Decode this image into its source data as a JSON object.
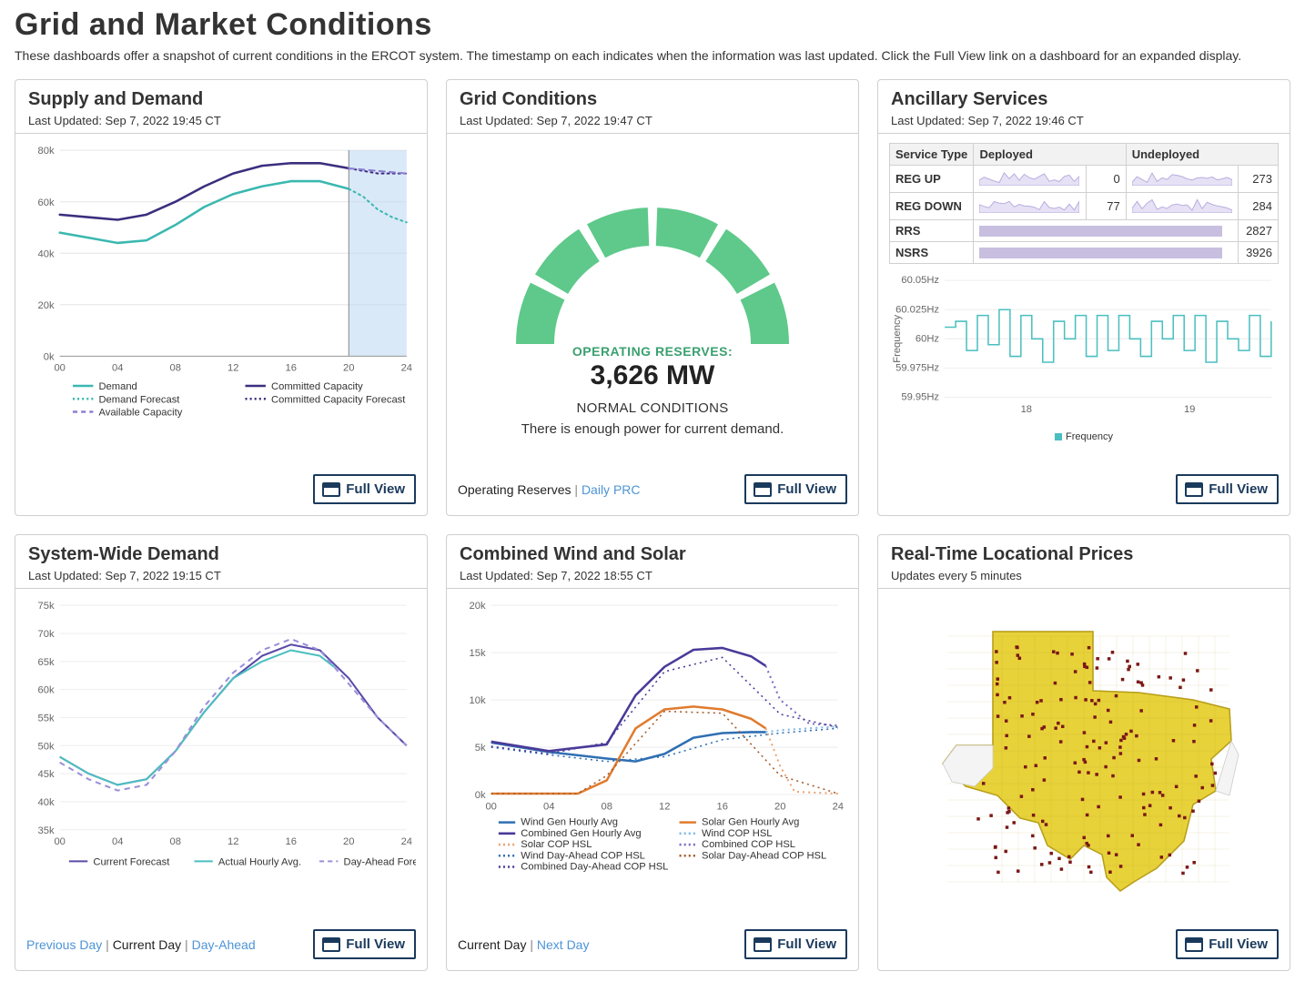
{
  "page": {
    "title": "Grid and Market Conditions",
    "subtitle": "These dashboards offer a snapshot of current conditions in the ERCOT system. The timestamp on each indicates when the information was last updated. Click the Full View link on a dashboard for an expanded display."
  },
  "colors": {
    "card_border": "#cfcfcf",
    "accent_nav": "#1a3a5c",
    "link": "#4d94d6"
  },
  "full_view_label": "Full View",
  "panels": {
    "supply": {
      "title": "Supply and Demand",
      "updated": "Last Updated: Sep 7, 2022 19:45 CT",
      "chart": {
        "type": "line",
        "x_ticks": [
          "00",
          "04",
          "08",
          "12",
          "16",
          "20",
          "24"
        ],
        "ylim": [
          0,
          80
        ],
        "ytick_step": 20,
        "y_suffix": "k",
        "now_x": 20,
        "series": {
          "demand": {
            "label": "Demand",
            "color": "#3ab8b0",
            "style": "solid",
            "width": 2.5,
            "pts": [
              [
                0,
                48
              ],
              [
                2,
                46
              ],
              [
                4,
                44
              ],
              [
                6,
                45
              ],
              [
                8,
                51
              ],
              [
                10,
                58
              ],
              [
                12,
                63
              ],
              [
                14,
                66
              ],
              [
                16,
                68
              ],
              [
                18,
                68
              ],
              [
                20,
                65
              ]
            ]
          },
          "demand_forecast": {
            "label": "Demand Forecast",
            "color": "#3ab8b0",
            "style": "dotted",
            "width": 2,
            "pts": [
              [
                20,
                65
              ],
              [
                21,
                62
              ],
              [
                22,
                57
              ],
              [
                23,
                54
              ],
              [
                24,
                52
              ]
            ]
          },
          "committed": {
            "label": "Committed Capacity",
            "color": "#3b2e7e",
            "style": "solid",
            "width": 2.5,
            "pts": [
              [
                0,
                55
              ],
              [
                2,
                54
              ],
              [
                4,
                53
              ],
              [
                6,
                55
              ],
              [
                8,
                60
              ],
              [
                10,
                66
              ],
              [
                12,
                71
              ],
              [
                14,
                74
              ],
              [
                16,
                75
              ],
              [
                18,
                75
              ],
              [
                20,
                73
              ]
            ]
          },
          "committed_forecast": {
            "label": "Committed Capacity Forecast",
            "color": "#3b2e7e",
            "style": "dotted",
            "width": 2,
            "pts": [
              [
                20,
                73
              ],
              [
                21,
                72
              ],
              [
                22,
                71
              ],
              [
                23,
                71
              ],
              [
                24,
                71
              ]
            ]
          },
          "available": {
            "label": "Available Capacity",
            "color": "#8c7fd4",
            "style": "dashed",
            "width": 2,
            "pts": [
              [
                20,
                73
              ],
              [
                24,
                71
              ]
            ]
          }
        },
        "fill_future": {
          "color": "#bcd7f2",
          "opacity": 0.55
        }
      }
    },
    "grid": {
      "title": "Grid Conditions",
      "updated": "Last Updated: Sep 7, 2022 19:47 CT",
      "gauge": {
        "segments": 6,
        "active_color": "#5ec98a",
        "inactive_color": "#5ec98a",
        "label": "OPERATING RESERVES:",
        "value": "3,626 MW",
        "status": "NORMAL CONDITIONS",
        "message": "There is enough power for current demand."
      },
      "footer_text": "Operating Reserves",
      "footer_link": "Daily PRC"
    },
    "ancillary": {
      "title": "Ancillary Services",
      "updated": "Last Updated: Sep 7, 2022 19:46 CT",
      "table": {
        "columns": [
          "Service Type",
          "Deployed",
          "Undeployed"
        ],
        "rows": [
          {
            "svc": "REG UP",
            "deployed": 0,
            "undeployed": 273,
            "spark_d": "area",
            "spark_u": "area"
          },
          {
            "svc": "REG DOWN",
            "deployed": 77,
            "undeployed": 284,
            "spark_d": "area",
            "spark_u": "area"
          },
          {
            "svc": "RRS",
            "deployed": null,
            "undeployed": 2827,
            "spark": "bar"
          },
          {
            "svc": "NSRS",
            "deployed": null,
            "undeployed": 3926,
            "spark": "bar"
          }
        ],
        "spark_color": "#b8aee0",
        "spark_fill": "#e6e1f4"
      },
      "freq_chart": {
        "type": "line",
        "color": "#4bbfc0",
        "ylabel": "Frequency",
        "y_ticks": [
          "59.95Hz",
          "59.975Hz",
          "60Hz",
          "60.025Hz",
          "60.05Hz"
        ],
        "x_ticks": [
          "18",
          "19"
        ],
        "legend": "Frequency",
        "pts": [
          [
            0,
            60.01
          ],
          [
            2,
            60.015
          ],
          [
            4,
            59.99
          ],
          [
            6,
            60.02
          ],
          [
            8,
            59.995
          ],
          [
            10,
            60.025
          ],
          [
            12,
            59.985
          ],
          [
            14,
            60.02
          ],
          [
            16,
            60.0
          ],
          [
            18,
            59.98
          ],
          [
            20,
            60.015
          ],
          [
            22,
            60.0
          ],
          [
            24,
            60.02
          ],
          [
            26,
            59.985
          ],
          [
            28,
            60.02
          ],
          [
            30,
            59.99
          ],
          [
            32,
            60.02
          ],
          [
            34,
            60.0
          ],
          [
            36,
            59.985
          ],
          [
            38,
            60.015
          ],
          [
            40,
            60.0
          ],
          [
            42,
            60.02
          ],
          [
            44,
            59.99
          ],
          [
            46,
            60.02
          ],
          [
            48,
            59.98
          ],
          [
            50,
            60.015
          ],
          [
            52,
            60.0
          ],
          [
            54,
            59.99
          ],
          [
            56,
            60.02
          ],
          [
            58,
            59.985
          ],
          [
            60,
            60.015
          ]
        ]
      }
    },
    "demand": {
      "title": "System-Wide Demand",
      "updated": "Last Updated: Sep 7, 2022 19:15 CT",
      "chart": {
        "type": "line",
        "x_ticks": [
          "00",
          "04",
          "08",
          "12",
          "16",
          "20",
          "24"
        ],
        "y_ticks": [
          35,
          40,
          45,
          50,
          55,
          60,
          65,
          70,
          75
        ],
        "y_suffix": "k",
        "series": {
          "current": {
            "label": "Current Forecast",
            "color": "#5a4aa8",
            "style": "solid",
            "width": 2,
            "pts": [
              [
                0,
                48
              ],
              [
                2,
                45
              ],
              [
                4,
                43
              ],
              [
                6,
                44
              ],
              [
                8,
                49
              ],
              [
                10,
                56
              ],
              [
                12,
                62
              ],
              [
                14,
                66
              ],
              [
                16,
                68
              ],
              [
                18,
                67
              ],
              [
                20,
                62
              ],
              [
                22,
                55
              ],
              [
                24,
                50
              ]
            ]
          },
          "actual": {
            "label": "Actual Hourly Avg.",
            "color": "#4bbfc0",
            "style": "solid",
            "width": 2,
            "pts": [
              [
                0,
                48
              ],
              [
                2,
                45
              ],
              [
                4,
                43
              ],
              [
                6,
                44
              ],
              [
                8,
                49
              ],
              [
                10,
                56
              ],
              [
                12,
                62
              ],
              [
                14,
                65
              ],
              [
                16,
                67
              ],
              [
                18,
                66
              ],
              [
                19,
                64
              ]
            ]
          },
          "dayahead": {
            "label": "Day-Ahead Forecast",
            "color": "#9a8fd8",
            "style": "dashed",
            "width": 2,
            "pts": [
              [
                0,
                47
              ],
              [
                2,
                44
              ],
              [
                4,
                42
              ],
              [
                6,
                43
              ],
              [
                8,
                49
              ],
              [
                10,
                57
              ],
              [
                12,
                63
              ],
              [
                14,
                67
              ],
              [
                16,
                69
              ],
              [
                18,
                67
              ],
              [
                20,
                61
              ],
              [
                22,
                55
              ],
              [
                24,
                50
              ]
            ]
          }
        }
      },
      "footer_prev": "Previous Day",
      "footer_cur": "Current Day",
      "footer_next": "Day-Ahead"
    },
    "wind": {
      "title": "Combined Wind and Solar",
      "updated": "Last Updated: Sep 7, 2022 18:55 CT",
      "chart": {
        "type": "line",
        "x_ticks": [
          "00",
          "04",
          "08",
          "12",
          "16",
          "20",
          "24"
        ],
        "y_ticks": [
          0,
          5,
          10,
          15,
          20
        ],
        "y_suffix": "k",
        "series": {
          "wind": {
            "label": "Wind Gen Hourly Avg",
            "color": "#2f6fb3",
            "style": "solid",
            "width": 2.5,
            "pts": [
              [
                0,
                5.5
              ],
              [
                4,
                4.5
              ],
              [
                8,
                3.8
              ],
              [
                10,
                3.5
              ],
              [
                12,
                4.3
              ],
              [
                14,
                6
              ],
              [
                16,
                6.5
              ],
              [
                18,
                6.6
              ],
              [
                19,
                6.6
              ]
            ]
          },
          "solar": {
            "label": "Solar Gen Hourly Avg",
            "color": "#e07b2e",
            "style": "solid",
            "width": 2.5,
            "pts": [
              [
                0,
                0.1
              ],
              [
                6,
                0.1
              ],
              [
                8,
                1.5
              ],
              [
                10,
                7
              ],
              [
                12,
                9
              ],
              [
                14,
                9.3
              ],
              [
                16,
                9
              ],
              [
                18,
                8
              ],
              [
                19,
                7
              ]
            ]
          },
          "combined": {
            "label": "Combined Gen Hourly Avg",
            "color": "#4a3a99",
            "style": "solid",
            "width": 2.5,
            "pts": [
              [
                0,
                5.6
              ],
              [
                4,
                4.6
              ],
              [
                8,
                5.3
              ],
              [
                10,
                10.5
              ],
              [
                12,
                13.5
              ],
              [
                14,
                15.3
              ],
              [
                16,
                15.5
              ],
              [
                18,
                14.6
              ],
              [
                19,
                13.6
              ]
            ]
          },
          "wind_cop": {
            "label": "Wind COP HSL",
            "color": "#7fb9e6",
            "style": "dotted",
            "width": 2,
            "pts": [
              [
                19,
                6.6
              ],
              [
                20,
                6.8
              ],
              [
                22,
                7
              ],
              [
                24,
                7.2
              ]
            ]
          },
          "solar_cop": {
            "label": "Solar COP HSL",
            "color": "#e9a574",
            "style": "dotted",
            "width": 2,
            "pts": [
              [
                19,
                7
              ],
              [
                20,
                3
              ],
              [
                21,
                0.3
              ],
              [
                24,
                0.1
              ]
            ]
          },
          "combined_cop": {
            "label": "Combined COP HSL",
            "color": "#7a6cc2",
            "style": "dotted",
            "width": 2,
            "pts": [
              [
                19,
                13.6
              ],
              [
                20,
                10
              ],
              [
                22,
                7.5
              ],
              [
                24,
                7.3
              ]
            ]
          },
          "wind_da": {
            "label": "Wind Day-Ahead COP HSL",
            "color": "#2f6fb3",
            "style": "dotted",
            "width": 1.5,
            "pts": [
              [
                0,
                5
              ],
              [
                4,
                4.2
              ],
              [
                8,
                3.5
              ],
              [
                12,
                4
              ],
              [
                16,
                5.8
              ],
              [
                20,
                6.5
              ],
              [
                24,
                7
              ]
            ]
          },
          "solar_da": {
            "label": "Solar Day-Ahead COP HSL",
            "color": "#a25a2a",
            "style": "dotted",
            "width": 1.5,
            "pts": [
              [
                0,
                0.1
              ],
              [
                6,
                0.1
              ],
              [
                8,
                2
              ],
              [
                12,
                8.8
              ],
              [
                16,
                8.6
              ],
              [
                20,
                2
              ],
              [
                24,
                0.1
              ]
            ]
          },
          "combined_da": {
            "label": "Combined Day-Ahead COP HSL",
            "color": "#4a3a99",
            "style": "dotted",
            "width": 1.5,
            "pts": [
              [
                0,
                5.1
              ],
              [
                4,
                4.3
              ],
              [
                8,
                5.5
              ],
              [
                12,
                13
              ],
              [
                16,
                14.5
              ],
              [
                20,
                8.5
              ],
              [
                24,
                7.1
              ]
            ]
          }
        }
      },
      "footer_cur": "Current Day",
      "footer_next": "Next Day"
    },
    "prices": {
      "title": "Real-Time Locational Prices",
      "updated": "Updates every 5 minutes",
      "map": {
        "fill": "#e8d23a",
        "stroke": "#b89f1a",
        "point_color": "#7a1818",
        "background": "#ffffff"
      }
    }
  }
}
